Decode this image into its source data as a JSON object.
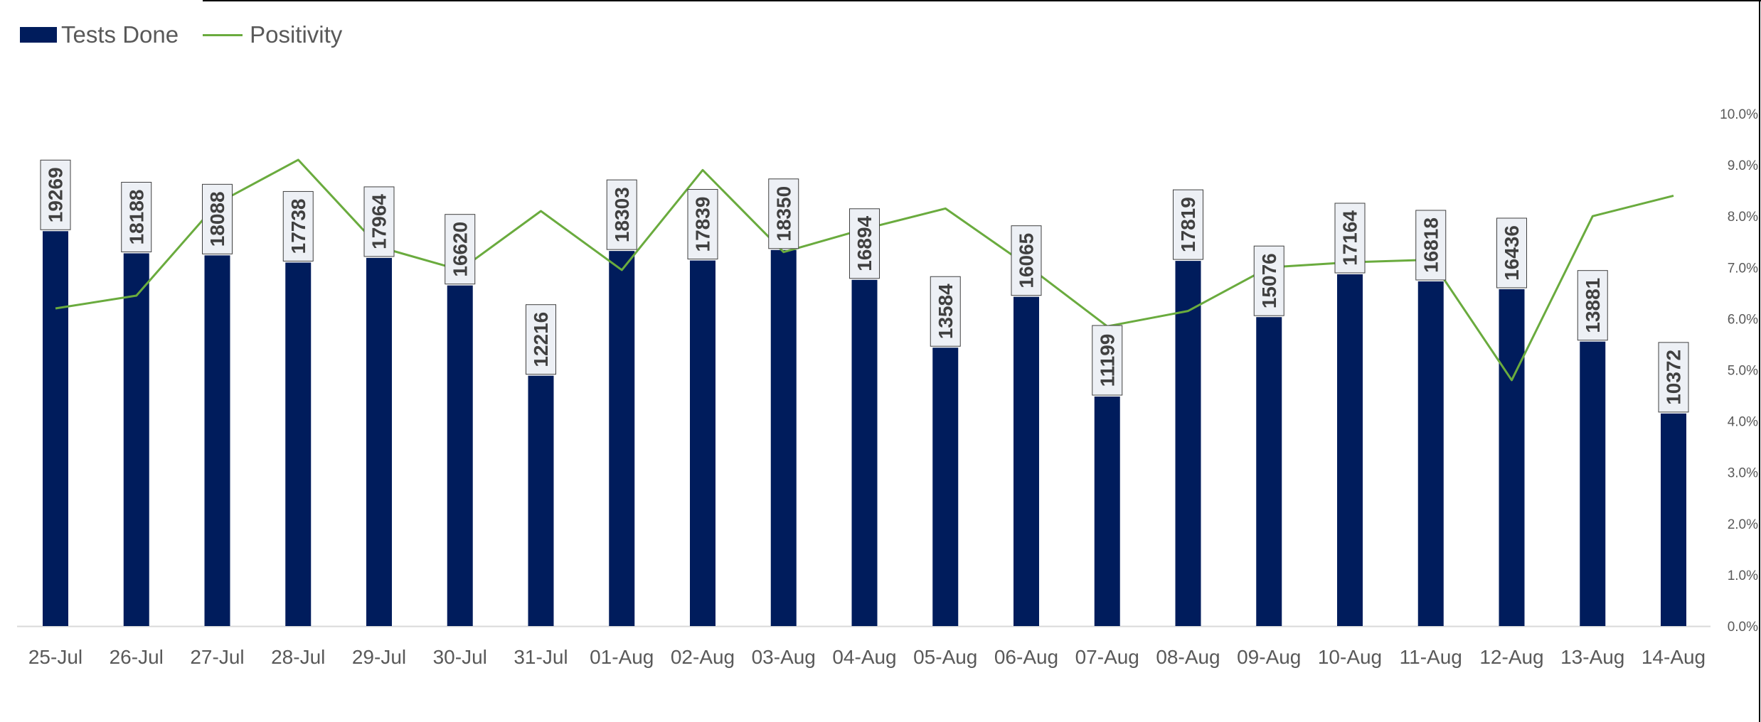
{
  "legend": {
    "bar_label": "Tests Done",
    "line_label": "Positivity"
  },
  "colors": {
    "bar": "#001c5c",
    "line": "#6aab3e",
    "label_box_fill": "#edf0f5",
    "label_box_stroke": "#404040",
    "tick_text": "#595959",
    "axis_line": "#d9d9d9",
    "frame_line": "#000000"
  },
  "chart_data": {
    "type": "bar",
    "categories": [
      "25-Jul",
      "26-Jul",
      "27-Jul",
      "28-Jul",
      "29-Jul",
      "30-Jul",
      "31-Jul",
      "01-Aug",
      "02-Aug",
      "03-Aug",
      "04-Aug",
      "05-Aug",
      "06-Aug",
      "07-Aug",
      "08-Aug",
      "09-Aug",
      "10-Aug",
      "11-Aug",
      "12-Aug",
      "13-Aug",
      "14-Aug"
    ],
    "series": [
      {
        "name": "Tests Done",
        "type": "bar",
        "axis": "left",
        "values": [
          19269,
          18188,
          18088,
          17738,
          17964,
          16620,
          12216,
          18303,
          17839,
          18350,
          16894,
          13584,
          16065,
          11199,
          17819,
          15076,
          17164,
          16818,
          16436,
          13881,
          10372
        ],
        "data_labels": [
          "19269",
          "18188",
          "18088",
          "17738",
          "17964",
          "16620",
          "12216",
          "18303",
          "17839",
          "18350",
          "16894",
          "13584",
          "16065",
          "11199",
          "17819",
          "15076",
          "17164",
          "16818",
          "16436",
          "13881",
          "10372"
        ]
      },
      {
        "name": "Positivity",
        "type": "line",
        "axis": "right",
        "values": [
          6.2,
          6.45,
          8.25,
          9.1,
          7.4,
          6.95,
          8.1,
          6.95,
          8.9,
          7.3,
          7.75,
          8.15,
          7.05,
          5.85,
          6.15,
          7.0,
          7.1,
          7.15,
          4.8,
          8.0,
          8.4
        ]
      }
    ],
    "y_left_range": [
      0,
      25000
    ],
    "y_right_range": [
      0,
      10
    ],
    "y_right_ticks": [
      "0.0%",
      "1.0%",
      "2.0%",
      "3.0%",
      "4.0%",
      "5.0%",
      "6.0%",
      "7.0%",
      "8.0%",
      "9.0%",
      "10.0%"
    ],
    "legend_position": "top-left",
    "grid": false,
    "title": ""
  }
}
